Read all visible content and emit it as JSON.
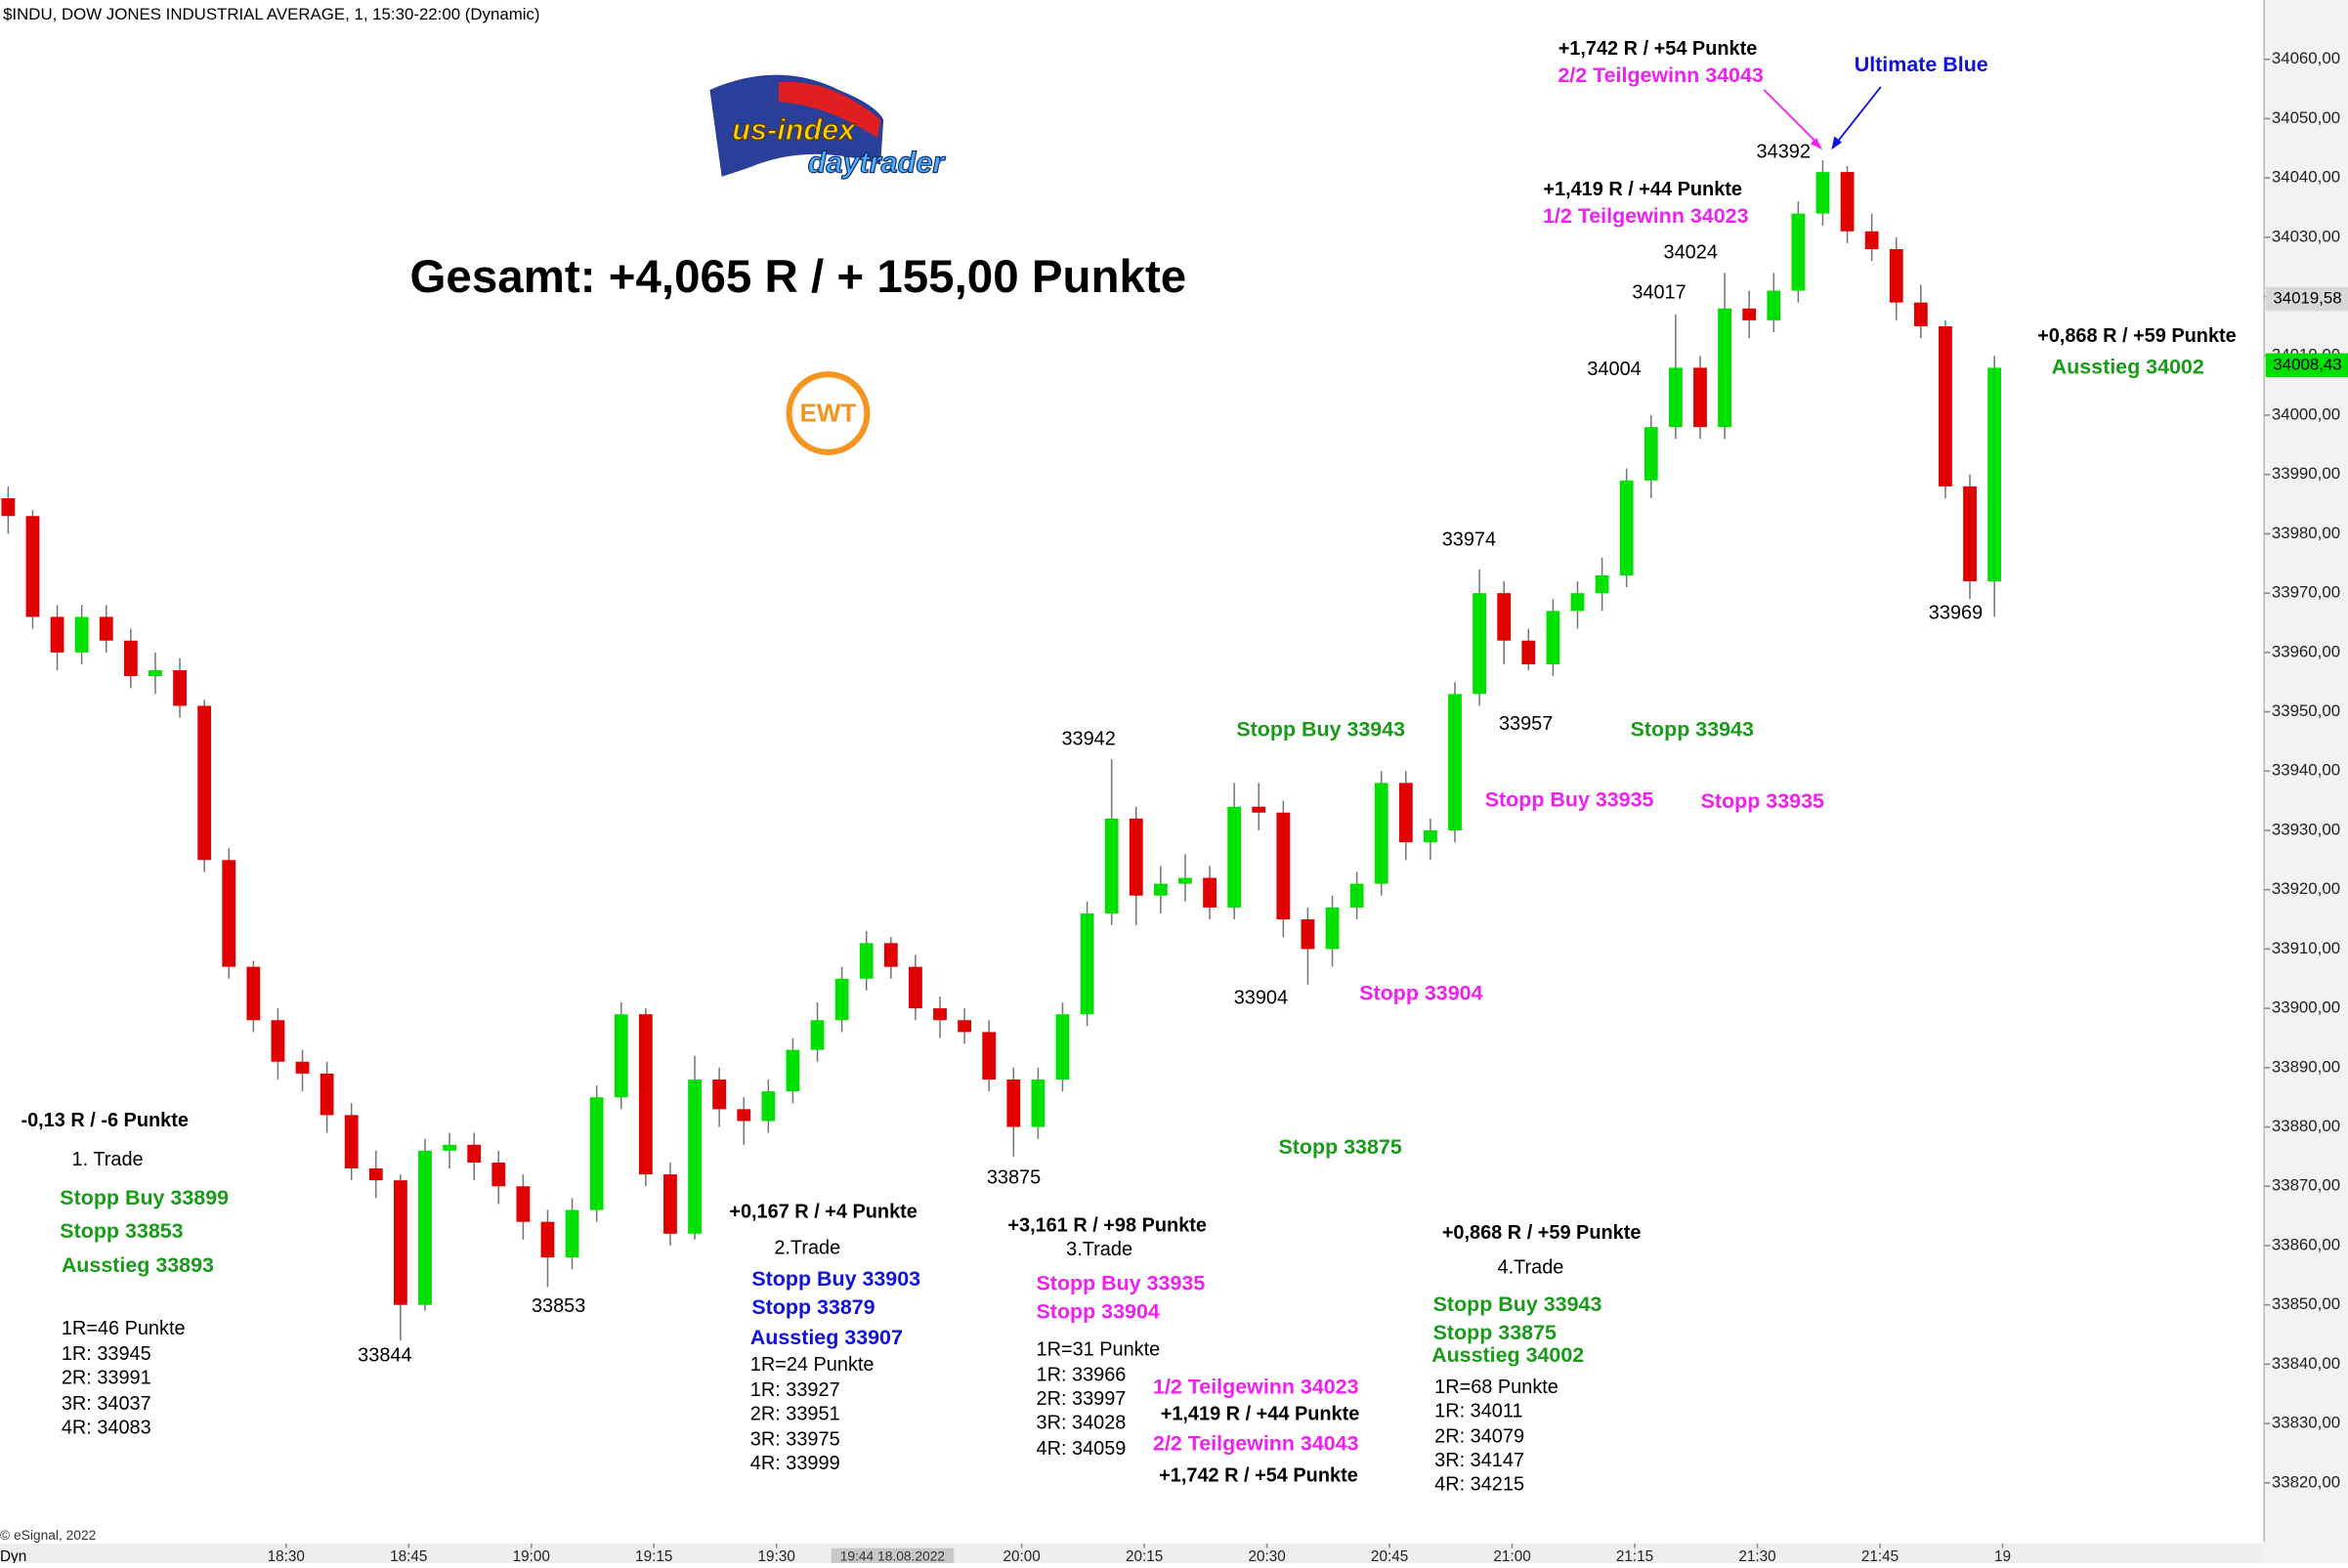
{
  "chart_data": {
    "type": "candlestick",
    "title": "$INDU, DOW JONES INDUSTRIAL AVERAGE, 1, 15:30-22:00 (Dynamic)",
    "headline": "Gesamt: +4,065 R / + 155,00 Punkte",
    "logo_text": [
      "us-index",
      "daytrader"
    ],
    "badge": "EWT",
    "copyright": "© eSignal, 2022",
    "footer_label": "Dyn",
    "cursor_label": "19:44 18.08.2022",
    "up_color": "#00e000",
    "down_color": "#e00000",
    "x": [
      1076,
      1079,
      1082,
      1085,
      1088,
      1091,
      1094,
      1097,
      1100,
      1103,
      1106,
      1109,
      1112,
      1115,
      1118,
      1121,
      1124,
      1127,
      1130,
      1133,
      1136,
      1139,
      1142,
      1145,
      1148,
      1151,
      1154,
      1157,
      1160,
      1163,
      1166,
      1169,
      1172,
      1175,
      1178,
      1181,
      1184,
      1187,
      1190,
      1193,
      1196,
      1199,
      1202,
      1205,
      1208,
      1211,
      1214,
      1217,
      1220,
      1223,
      1226,
      1229,
      1232,
      1235,
      1238,
      1241,
      1244,
      1247,
      1250,
      1253,
      1256,
      1259,
      1262,
      1265,
      1268,
      1271,
      1274,
      1277,
      1280,
      1283,
      1286,
      1289,
      1292,
      1295,
      1298,
      1301,
      1304,
      1307,
      1310,
      1313,
      1316,
      1319
    ],
    "series": [
      {
        "open": [
          33986,
          33983,
          33966,
          33960,
          33966,
          33962,
          33956,
          33957,
          33951,
          33925,
          33907,
          33898,
          33891,
          33889,
          33882,
          33873,
          33871,
          33850,
          33876,
          33877,
          33874,
          33870,
          33864,
          33858,
          33866,
          33885,
          33899,
          33872,
          33862,
          33888,
          33883,
          33881,
          33886,
          33893,
          33898,
          33905,
          33911,
          33907,
          33900,
          33898,
          33896,
          33888,
          33880,
          33888,
          33899,
          33916,
          33932,
          33919,
          33921,
          33922,
          33917,
          33934,
          33933,
          33915,
          33910,
          33917,
          33921,
          33938,
          33928,
          33930,
          33953,
          33970,
          33962,
          33958,
          33967,
          33970,
          33973,
          33989,
          33998,
          34008,
          33998,
          34018,
          34016,
          34021,
          34034,
          34041,
          34031,
          34028,
          34019,
          34015,
          33988,
          33972
        ],
        "high": [
          33988,
          33984,
          33968,
          33968,
          33968,
          33964,
          33960,
          33959,
          33952,
          33927,
          33908,
          33900,
          33893,
          33891,
          33884,
          33876,
          33872,
          33878,
          33879,
          33879,
          33876,
          33872,
          33866,
          33868,
          33887,
          33901,
          33900,
          33874,
          33892,
          33890,
          33885,
          33888,
          33895,
          33901,
          33907,
          33913,
          33912,
          33909,
          33902,
          33900,
          33898,
          33890,
          33890,
          33901,
          33918,
          33942,
          33934,
          33924,
          33926,
          33924,
          33938,
          33938,
          33935,
          33917,
          33919,
          33923,
          33940,
          33940,
          33932,
          33955,
          33974,
          33972,
          33964,
          33969,
          33972,
          33976,
          33991,
          34000,
          34017,
          34010,
          34024,
          34021,
          34024,
          34036,
          34043,
          34042,
          34034,
          34030,
          34022,
          34016,
          33990,
          34010
        ],
        "low": [
          33980,
          33964,
          33957,
          33958,
          33960,
          33954,
          33953,
          33949,
          33923,
          33905,
          33896,
          33888,
          33886,
          33879,
          33871,
          33868,
          33844,
          33849,
          33873,
          33871,
          33867,
          33861,
          33853,
          33856,
          33864,
          33883,
          33870,
          33860,
          33861,
          33880,
          33877,
          33879,
          33884,
          33891,
          33896,
          33903,
          33905,
          33898,
          33895,
          33894,
          33886,
          33875,
          33878,
          33886,
          33897,
          33914,
          33914,
          33916,
          33918,
          33915,
          33915,
          33930,
          33912,
          33904,
          33907,
          33915,
          33919,
          33925,
          33925,
          33928,
          33951,
          33958,
          33957,
          33956,
          33964,
          33967,
          33971,
          33986,
          33996,
          33996,
          33996,
          34013,
          34014,
          34019,
          34032,
          34029,
          34026,
          34016,
          34013,
          33986,
          33969,
          33966
        ],
        "close": [
          33983,
          33966,
          33960,
          33966,
          33962,
          33956,
          33957,
          33951,
          33925,
          33907,
          33898,
          33891,
          33889,
          33882,
          33873,
          33871,
          33850,
          33876,
          33877,
          33874,
          33870,
          33864,
          33858,
          33866,
          33885,
          33899,
          33872,
          33862,
          33888,
          33883,
          33881,
          33886,
          33893,
          33898,
          33905,
          33911,
          33907,
          33900,
          33898,
          33896,
          33888,
          33880,
          33888,
          33899,
          33916,
          33932,
          33919,
          33921,
          33922,
          33917,
          33934,
          33933,
          33915,
          33910,
          33917,
          33921,
          33938,
          33928,
          33930,
          33953,
          33970,
          33962,
          33958,
          33967,
          33970,
          33973,
          33989,
          33998,
          34008,
          33998,
          34018,
          34016,
          34021,
          34034,
          34041,
          34031,
          34028,
          34019,
          34015,
          33988,
          33972,
          34008
        ]
      }
    ],
    "xlim": [
      1075,
      1352
    ],
    "ylim": [
      33810,
      34070
    ],
    "xticks": [
      {
        "value": 1110,
        "label": "18:30"
      },
      {
        "value": 1125,
        "label": "18:45"
      },
      {
        "value": 1140,
        "label": "19:00"
      },
      {
        "value": 1155,
        "label": "19:15"
      },
      {
        "value": 1170,
        "label": "19:30"
      },
      {
        "value": 1200,
        "label": "20:00"
      },
      {
        "value": 1215,
        "label": "20:15"
      },
      {
        "value": 1230,
        "label": "20:30"
      },
      {
        "value": 1245,
        "label": "20:45"
      },
      {
        "value": 1260,
        "label": "21:00"
      },
      {
        "value": 1275,
        "label": "21:15"
      },
      {
        "value": 1290,
        "label": "21:30"
      },
      {
        "value": 1305,
        "label": "21:45"
      },
      {
        "value": 1320,
        "label": "19"
      }
    ],
    "yticks": [
      {
        "value": 33820,
        "label": "33820,00"
      },
      {
        "value": 33830,
        "label": "33830,00"
      },
      {
        "value": 33840,
        "label": "33840,00"
      },
      {
        "value": 33850,
        "label": "33850,00"
      },
      {
        "value": 33860,
        "label": "33860,00"
      },
      {
        "value": 33870,
        "label": "33870,00"
      },
      {
        "value": 33880,
        "label": "33880,00"
      },
      {
        "value": 33890,
        "label": "33890,00"
      },
      {
        "value": 33900,
        "label": "33900,00"
      },
      {
        "value": 33910,
        "label": "33910,00"
      },
      {
        "value": 33920,
        "label": "33920,00"
      },
      {
        "value": 33930,
        "label": "33930,00"
      },
      {
        "value": 33940,
        "label": "33940,00"
      },
      {
        "value": 33950,
        "label": "33950,00"
      },
      {
        "value": 33960,
        "label": "33960,00"
      },
      {
        "value": 33970,
        "label": "33970,00"
      },
      {
        "value": 33980,
        "label": "33980,00"
      },
      {
        "value": 33990,
        "label": "33990,00"
      },
      {
        "value": 34000,
        "label": "34000,00"
      },
      {
        "value": 34010,
        "label": "34010,00"
      },
      {
        "value": 34020,
        "label": "34020,00"
      },
      {
        "value": 34030,
        "label": "34030,00"
      },
      {
        "value": 34040,
        "label": "34040,00"
      },
      {
        "value": 34050,
        "label": "34050,00"
      },
      {
        "value": 34060,
        "label": "34060,00"
      }
    ],
    "price_labels": [
      {
        "value": 34019.58,
        "label": "34019,58",
        "color": "#d8d8d8"
      },
      {
        "value": 34008.43,
        "label": "34008,43",
        "color": "#00e000"
      }
    ],
    "annotations": [
      {
        "text": "+1,742 R / +54 Punkte",
        "color": "#000000"
      },
      {
        "text": "2/2 Teilgewinn 34043",
        "color": "#f020f0"
      },
      {
        "text": "Ultimate Blue",
        "color": "#1010e0"
      },
      {
        "text": "34392",
        "color": "#000000"
      },
      {
        "text": "+1,419 R / +44 Punkte",
        "color": "#000000"
      },
      {
        "text": "1/2 Teilgewinn 34023",
        "color": "#f020f0"
      },
      {
        "text": "34024",
        "color": "#000000"
      },
      {
        "text": "34017",
        "color": "#000000"
      },
      {
        "text": "34004",
        "color": "#000000"
      },
      {
        "text": "+0,868 R / +59 Punkte",
        "color": "#000000"
      },
      {
        "text": "Ausstieg 34002",
        "color": "#1a9a1a"
      },
      {
        "text": "33974",
        "color": "#000000"
      },
      {
        "text": "33969",
        "color": "#000000"
      },
      {
        "text": "33957",
        "color": "#000000"
      },
      {
        "text": "Stopp Buy 33943",
        "color": "#1a9a1a"
      },
      {
        "text": "Stopp 33943",
        "color": "#1a9a1a"
      },
      {
        "text": "33942",
        "color": "#000000"
      },
      {
        "text": "Stopp Buy 33935",
        "color": "#f020f0"
      },
      {
        "text": "Stopp 33935",
        "color": "#f020f0"
      },
      {
        "text": "33904",
        "color": "#000000"
      },
      {
        "text": "Stopp 33904",
        "color": "#f020f0"
      },
      {
        "text": "-0,13 R / -6 Punkte",
        "color": "#000000"
      },
      {
        "text": "1. Trade",
        "color": "#000000"
      },
      {
        "text": "Stopp Buy 33899",
        "color": "#1a9a1a"
      },
      {
        "text": "Stopp 33853",
        "color": "#1a9a1a"
      },
      {
        "text": "Ausstieg 33893",
        "color": "#1a9a1a"
      },
      {
        "text": "1R=46 Punkte",
        "color": "#000000"
      },
      {
        "text": "1R: 33945",
        "color": "#000000"
      },
      {
        "text": "2R: 33991",
        "color": "#000000"
      },
      {
        "text": "3R: 34037",
        "color": "#000000"
      },
      {
        "text": "4R: 34083",
        "color": "#000000"
      },
      {
        "text": "33844",
        "color": "#000000"
      },
      {
        "text": "33853",
        "color": "#000000"
      },
      {
        "text": "33875",
        "color": "#000000"
      },
      {
        "text": "Stopp 33875",
        "color": "#1a9a1a"
      },
      {
        "text": "+0,167 R / +4 Punkte",
        "color": "#000000"
      },
      {
        "text": "2.Trade",
        "color": "#000000"
      },
      {
        "text": "Stopp Buy 33903",
        "color": "#1010e0"
      },
      {
        "text": "Stopp 33879",
        "color": "#1010e0"
      },
      {
        "text": "Ausstieg 33907",
        "color": "#1010e0"
      },
      {
        "text": "1R=24 Punkte",
        "color": "#000000"
      },
      {
        "text": "1R: 33927",
        "color": "#000000"
      },
      {
        "text": "2R: 33951",
        "color": "#000000"
      },
      {
        "text": "3R: 33975",
        "color": "#000000"
      },
      {
        "text": "4R: 33999",
        "color": "#000000"
      },
      {
        "text": "+3,161 R / +98 Punkte",
        "color": "#000000"
      },
      {
        "text": "3.Trade",
        "color": "#000000"
      },
      {
        "text": "Stopp Buy 33935",
        "color": "#f020f0"
      },
      {
        "text": "Stopp 33904",
        "color": "#f020f0"
      },
      {
        "text": "1R=31 Punkte",
        "color": "#000000"
      },
      {
        "text": "1R: 33966",
        "color": "#000000"
      },
      {
        "text": "2R: 33997",
        "color": "#000000"
      },
      {
        "text": "3R: 34028",
        "color": "#000000"
      },
      {
        "text": "4R: 34059",
        "color": "#000000"
      },
      {
        "text": "1/2 Teilgewinn 34023",
        "color": "#f020f0"
      },
      {
        "text": "+1,419 R / +44 Punkte",
        "color": "#000000"
      },
      {
        "text": "2/2 Teilgewinn 34043",
        "color": "#f020f0"
      },
      {
        "text": "+1,742 R / +54 Punkte",
        "color": "#000000"
      },
      {
        "text": "+0,868 R / +59 Punkte",
        "color": "#000000"
      },
      {
        "text": "4.Trade",
        "color": "#000000"
      },
      {
        "text": "Stopp Buy 33943",
        "color": "#1a9a1a"
      },
      {
        "text": "Stopp 33875",
        "color": "#1a9a1a"
      },
      {
        "text": "Ausstieg 34002",
        "color": "#1a9a1a"
      },
      {
        "text": "1R=68 Punkte",
        "color": "#000000"
      },
      {
        "text": "1R: 34011",
        "color": "#000000"
      },
      {
        "text": "2R: 34079",
        "color": "#000000"
      },
      {
        "text": "3R: 34147",
        "color": "#000000"
      },
      {
        "text": "4R: 34215",
        "color": "#000000"
      }
    ]
  }
}
